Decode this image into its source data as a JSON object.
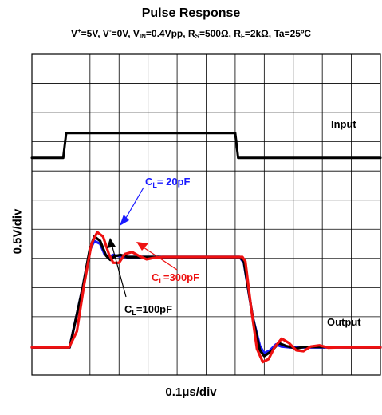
{
  "chart_data": {
    "type": "line",
    "title": "Pulse Response",
    "conditions": {
      "vplus_sym": "V",
      "vplus_sup": "+",
      "vplus_val": "=5V, ",
      "vminus_sym": "V",
      "vminus_sup": "-",
      "vminus_val": "=0V, ",
      "vin_sym": "V",
      "vin_sub": "IN",
      "vin_val": "=0.4Vpp, ",
      "rs_sym": "R",
      "rs_sub": "S",
      "rs_val": "=500Ω, ",
      "rf_sym": "R",
      "rf_sub": "F",
      "rf_val": "=2kΩ, ",
      "ta": "Ta=25ºC"
    },
    "xlabel": "0.1μs/div",
    "ylabel": "0.5V/div",
    "grid": true,
    "x_divisions": 12,
    "y_divisions": 11,
    "xlim": [
      0,
      12
    ],
    "ylim": [
      0,
      11
    ],
    "annotations": {
      "input": "Input",
      "output": "Output",
      "cl20": {
        "pre": "C",
        "sub": "L",
        "post": "= 20pF"
      },
      "cl100": {
        "pre": "C",
        "sub": "L",
        "post": "=100pF"
      },
      "cl300": {
        "pre": "C",
        "sub": "L",
        "post": "=300pF"
      }
    },
    "series": [
      {
        "name": "Input",
        "color": "#000000",
        "points": [
          [
            0,
            7.45
          ],
          [
            1.08,
            7.45
          ],
          [
            1.18,
            8.3
          ],
          [
            7.0,
            8.3
          ],
          [
            7.1,
            7.45
          ],
          [
            12,
            7.45
          ]
        ]
      },
      {
        "name": "CL=20pF",
        "color": "#1a1aff",
        "points": [
          [
            0,
            0.95
          ],
          [
            1.3,
            0.95
          ],
          [
            1.75,
            3.0
          ],
          [
            2.0,
            4.3
          ],
          [
            2.15,
            4.6
          ],
          [
            2.35,
            4.5
          ],
          [
            2.5,
            4.15
          ],
          [
            2.65,
            4.05
          ],
          [
            2.8,
            4.12
          ],
          [
            3.0,
            4.08
          ],
          [
            3.3,
            4.05
          ],
          [
            7.15,
            4.05
          ],
          [
            7.3,
            3.85
          ],
          [
            7.6,
            2.0
          ],
          [
            7.85,
            1.0
          ],
          [
            8.0,
            0.75
          ],
          [
            8.2,
            0.85
          ],
          [
            8.4,
            1.05
          ],
          [
            8.6,
            0.98
          ],
          [
            8.9,
            0.95
          ],
          [
            12,
            0.95
          ]
        ]
      },
      {
        "name": "CL=100pF",
        "color": "#000000",
        "points": [
          [
            0,
            0.95
          ],
          [
            1.3,
            0.95
          ],
          [
            1.75,
            3.0
          ],
          [
            2.0,
            4.35
          ],
          [
            2.15,
            4.75
          ],
          [
            2.35,
            4.6
          ],
          [
            2.55,
            4.1
          ],
          [
            2.7,
            3.95
          ],
          [
            2.85,
            4.08
          ],
          [
            3.05,
            4.12
          ],
          [
            3.3,
            4.05
          ],
          [
            7.15,
            4.05
          ],
          [
            7.3,
            3.9
          ],
          [
            7.6,
            2.0
          ],
          [
            7.85,
            0.85
          ],
          [
            8.0,
            0.65
          ],
          [
            8.25,
            0.82
          ],
          [
            8.5,
            1.1
          ],
          [
            8.75,
            1.0
          ],
          [
            9.1,
            0.92
          ],
          [
            9.4,
            0.97
          ],
          [
            12,
            0.95
          ]
        ]
      },
      {
        "name": "CL=300pF",
        "color": "#ee1111",
        "points": [
          [
            0,
            0.95
          ],
          [
            1.28,
            0.95
          ],
          [
            1.55,
            1.5
          ],
          [
            1.8,
            3.1
          ],
          [
            2.05,
            4.5
          ],
          [
            2.25,
            4.9
          ],
          [
            2.45,
            4.75
          ],
          [
            2.65,
            4.15
          ],
          [
            2.8,
            3.85
          ],
          [
            3.0,
            3.85
          ],
          [
            3.2,
            4.15
          ],
          [
            3.45,
            4.22
          ],
          [
            3.7,
            4.08
          ],
          [
            3.95,
            3.97
          ],
          [
            4.2,
            4.02
          ],
          [
            4.5,
            4.05
          ],
          [
            7.25,
            4.05
          ],
          [
            7.35,
            3.9
          ],
          [
            7.55,
            2.3
          ],
          [
            7.75,
            0.9
          ],
          [
            7.95,
            0.45
          ],
          [
            8.15,
            0.55
          ],
          [
            8.35,
            0.95
          ],
          [
            8.6,
            1.25
          ],
          [
            8.85,
            1.1
          ],
          [
            9.1,
            0.85
          ],
          [
            9.35,
            0.82
          ],
          [
            9.6,
            0.98
          ],
          [
            9.9,
            1.02
          ],
          [
            10.2,
            0.94
          ],
          [
            10.5,
            0.95
          ],
          [
            12,
            0.95
          ]
        ]
      }
    ]
  }
}
